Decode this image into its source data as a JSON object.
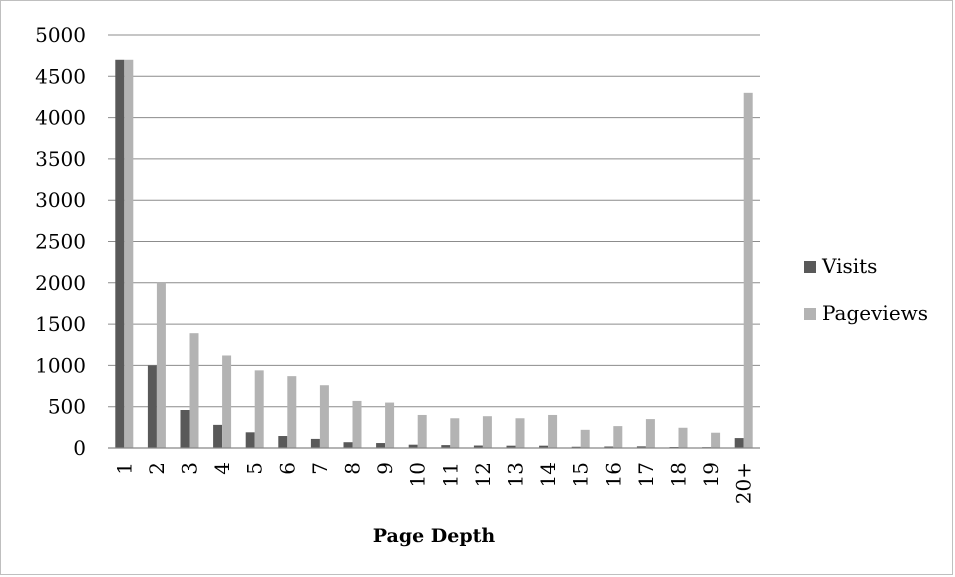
{
  "chart_data": {
    "type": "bar",
    "title": "",
    "xlabel": "Page Depth",
    "ylabel": "",
    "ylim": [
      0,
      5000
    ],
    "yticks": [
      0,
      500,
      1000,
      1500,
      2000,
      2500,
      3000,
      3500,
      4000,
      4500,
      5000
    ],
    "grid": true,
    "legend_position": "right",
    "categories": [
      "1",
      "2",
      "3",
      "4",
      "5",
      "6",
      "7",
      "8",
      "9",
      "10",
      "11",
      "12",
      "13",
      "14",
      "15",
      "16",
      "17",
      "18",
      "19",
      "20+"
    ],
    "series": [
      {
        "name": "Visits",
        "color": "#595959",
        "values": [
          4700,
          1000,
          460,
          280,
          190,
          145,
          110,
          70,
          60,
          40,
          35,
          30,
          28,
          28,
          15,
          18,
          20,
          12,
          10,
          120
        ]
      },
      {
        "name": "Pageviews",
        "color": "#b3b3b3",
        "values": [
          4700,
          2000,
          1390,
          1120,
          940,
          870,
          760,
          570,
          550,
          400,
          360,
          385,
          360,
          400,
          220,
          265,
          350,
          245,
          185,
          4300
        ]
      }
    ]
  }
}
